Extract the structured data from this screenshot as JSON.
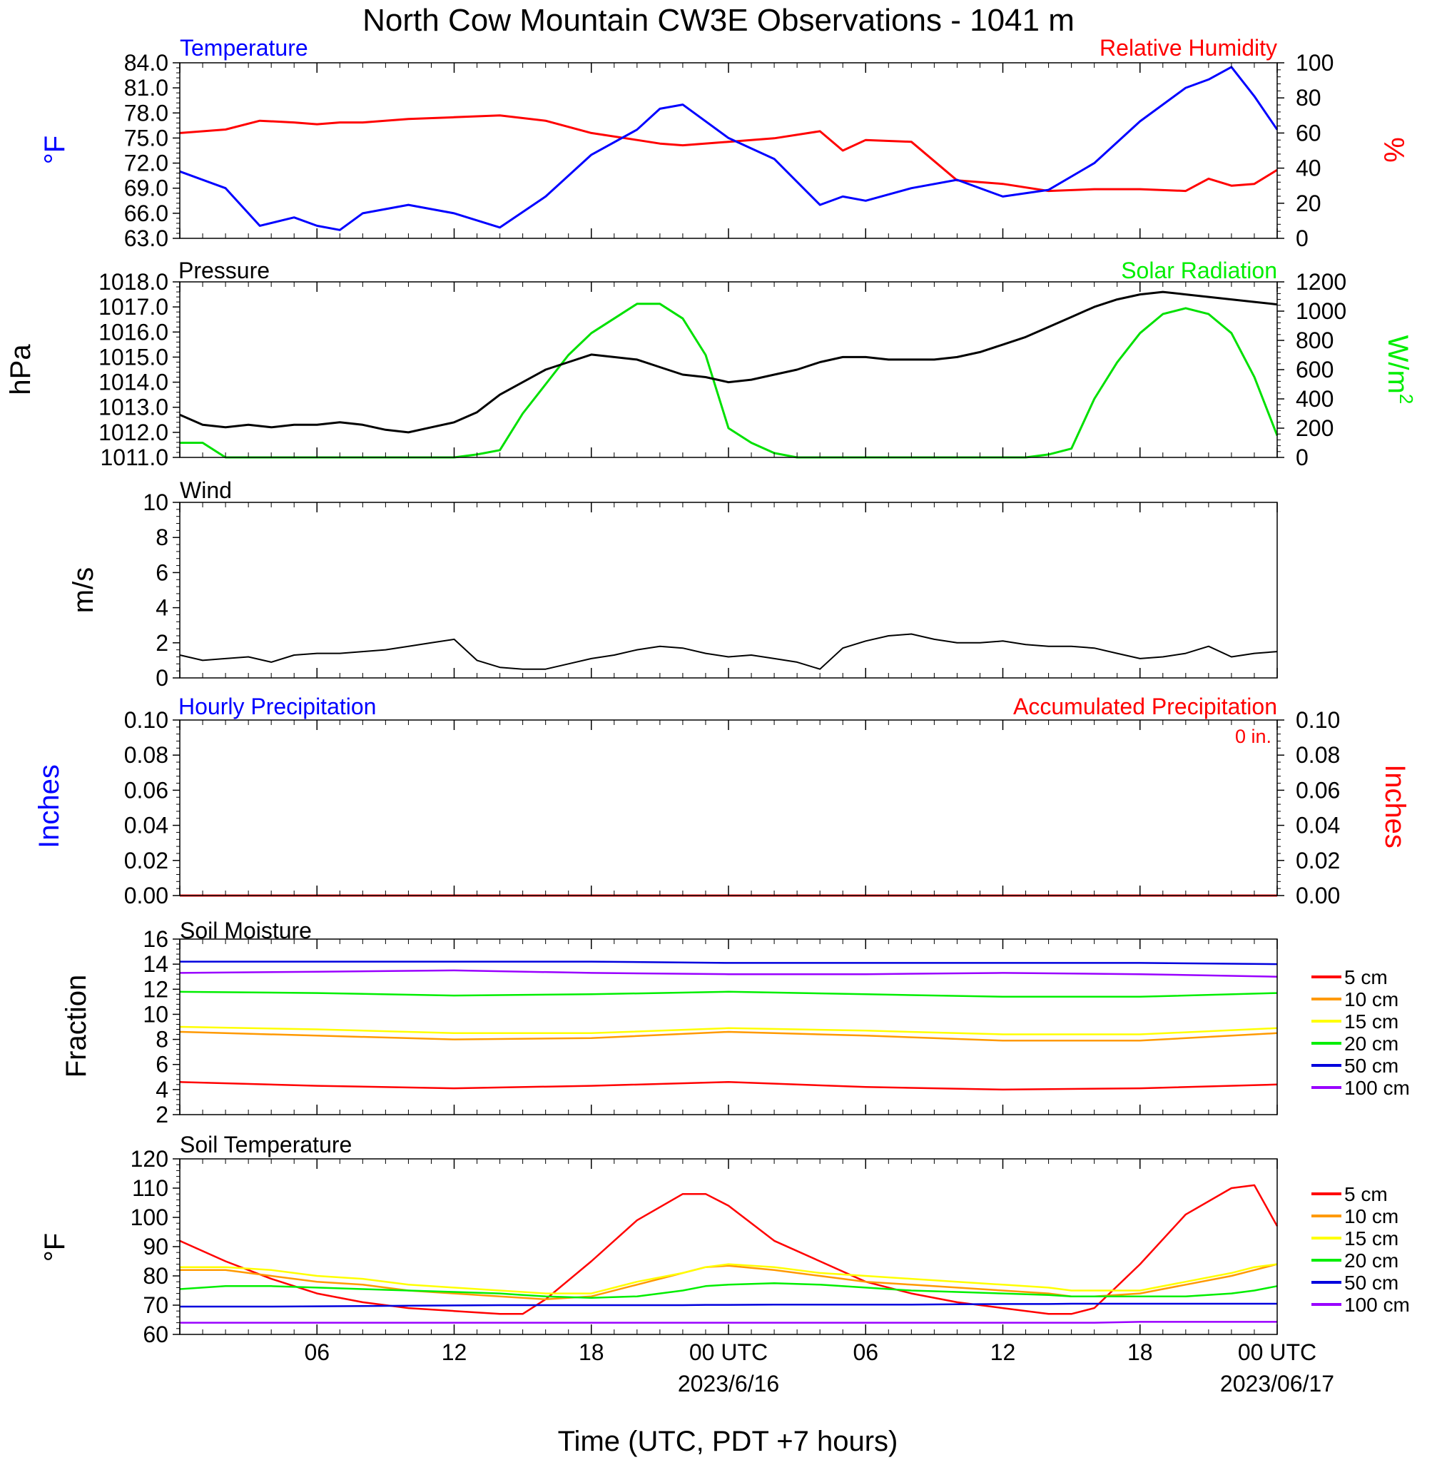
{
  "title": "North Cow Mountain CW3E Observations - 1041 m",
  "xlabel": "Time (UTC, PDT +7 hours)",
  "x_ticks": [
    {
      "hour": 6,
      "label": "06"
    },
    {
      "hour": 12,
      "label": "12"
    },
    {
      "hour": 18,
      "label": "18"
    },
    {
      "hour": 24,
      "label": "00 UTC",
      "date": "2023/6/16"
    },
    {
      "hour": 30,
      "label": "06"
    },
    {
      "hour": 36,
      "label": "12"
    },
    {
      "hour": 42,
      "label": "18"
    },
    {
      "hour": 48,
      "label": "00 UTC",
      "date": "2023/06/17"
    }
  ],
  "colors": {
    "temperature": "#0000ff",
    "humidity": "#ff0000",
    "pressure": "#000000",
    "solar": "#00e000",
    "wind": "#000000",
    "barbs": "#ff0000",
    "hourly_precip": "#0000ff",
    "accum_precip": "#ff0000",
    "cm5": "#ff0000",
    "cm10": "#ff9900",
    "cm15": "#ffff00",
    "cm20": "#00ee00",
    "cm50": "#0000dd",
    "cm100": "#9900ff"
  },
  "panels": {
    "temp_rh": {
      "left_title": "Temperature",
      "right_title": "Relative Humidity",
      "left_unit": "°F",
      "right_unit": "%",
      "left_ticks": [
        "84.0",
        "81.0",
        "78.0",
        "75.0",
        "72.0",
        "69.0",
        "66.0",
        "63.0"
      ],
      "right_ticks": [
        "100",
        "80",
        "60",
        "40",
        "20",
        "0"
      ]
    },
    "pressure": {
      "left_title": "Pressure",
      "right_title": "Solar Radiation",
      "left_unit": "hPa",
      "right_unit": "W/m",
      "right_unit_sup": "2",
      "left_ticks": [
        "1018.0",
        "1017.0",
        "1016.0",
        "1015.0",
        "1014.0",
        "1013.0",
        "1012.0",
        "1011.0"
      ],
      "right_ticks": [
        "1200",
        "1000",
        "800",
        "600",
        "400",
        "200",
        "0"
      ]
    },
    "wind": {
      "left_title": "Wind",
      "left_unit": "m/s",
      "left_ticks": [
        "10",
        "8",
        "6",
        "4",
        "2",
        "0"
      ]
    },
    "precip": {
      "left_title": "Hourly Precipitation",
      "right_title": "Accumulated Precipitation",
      "total": "0 in.",
      "left_unit": "Inches",
      "right_unit": "Inches",
      "left_ticks": [
        "0.10",
        "0.08",
        "0.06",
        "0.04",
        "0.02",
        "0.00"
      ],
      "right_ticks": [
        "0.10",
        "0.08",
        "0.06",
        "0.04",
        "0.02",
        "0.00"
      ]
    },
    "soil_moisture": {
      "left_title": "Soil Moisture",
      "left_unit": "Fraction",
      "left_ticks": [
        "16",
        "14",
        "12",
        "10",
        "8",
        "6",
        "4",
        "2"
      ],
      "legend": [
        "5 cm",
        "10 cm",
        "15 cm",
        "20 cm",
        "50 cm",
        "100 cm"
      ]
    },
    "soil_temp": {
      "left_title": "Soil Temperature",
      "left_unit": "°F",
      "left_ticks": [
        "120",
        "110",
        "100",
        "90",
        "80",
        "70",
        "60"
      ],
      "legend": [
        "5 cm",
        "10 cm",
        "15 cm",
        "20 cm",
        "50 cm",
        "100 cm"
      ]
    }
  },
  "chart_data": [
    {
      "type": "line",
      "title": "Temperature / Relative Humidity",
      "x_hours": [
        0,
        2,
        3.5,
        5,
        6,
        7,
        8,
        10,
        12,
        14,
        16,
        18,
        20,
        21,
        22,
        24,
        26,
        28,
        29,
        30,
        32,
        34,
        36,
        38,
        40,
        42,
        44,
        45,
        46,
        47,
        48
      ],
      "series": [
        {
          "name": "Temperature",
          "axis": "left",
          "ylim": [
            63,
            84
          ],
          "values": [
            71,
            69,
            64.5,
            65.5,
            64.5,
            64,
            66,
            67,
            66,
            64.3,
            68,
            73,
            76,
            78.5,
            79,
            75,
            72.5,
            67,
            68,
            67.5,
            69,
            70,
            68,
            68.8,
            72,
            77,
            81,
            82,
            83.5,
            80,
            76
          ]
        },
        {
          "name": "Relative Humidity",
          "axis": "right",
          "ylim": [
            0,
            100
          ],
          "values": [
            60,
            62,
            67,
            66,
            65,
            66,
            66,
            68,
            69,
            70,
            67,
            60,
            56,
            54,
            53,
            55,
            57,
            61,
            50,
            56,
            55,
            33,
            31,
            27,
            28,
            28,
            27,
            34,
            30,
            31,
            39
          ]
        }
      ]
    },
    {
      "type": "line",
      "title": "Pressure / Solar Radiation",
      "x_hours": [
        0,
        1,
        2,
        3,
        4,
        5,
        6,
        7,
        8,
        9,
        10,
        11,
        12,
        13,
        14,
        15,
        16,
        17,
        18,
        19,
        20,
        21,
        22,
        23,
        24,
        25,
        26,
        27,
        28,
        29,
        30,
        31,
        32,
        33,
        34,
        35,
        36,
        37,
        38,
        39,
        40,
        41,
        42,
        43,
        44,
        45,
        46,
        47,
        48
      ],
      "series": [
        {
          "name": "Pressure",
          "axis": "left",
          "ylim": [
            1011,
            1018
          ],
          "values": [
            1012.7,
            1012.3,
            1012.2,
            1012.3,
            1012.2,
            1012.3,
            1012.3,
            1012.4,
            1012.3,
            1012.1,
            1012.0,
            1012.2,
            1012.4,
            1012.8,
            1013.5,
            1014.0,
            1014.5,
            1014.8,
            1015.1,
            1015.0,
            1014.9,
            1014.6,
            1014.3,
            1014.2,
            1014.0,
            1014.1,
            1014.3,
            1014.5,
            1014.8,
            1015.0,
            1015.0,
            1014.9,
            1014.9,
            1014.9,
            1015.0,
            1015.2,
            1015.5,
            1015.8,
            1016.2,
            1016.6,
            1017.0,
            1017.3,
            1017.5,
            1017.6,
            1017.5,
            1017.4,
            1017.3,
            1017.2,
            1017.1
          ]
        },
        {
          "name": "Solar Radiation",
          "axis": "right",
          "ylim": [
            0,
            1200
          ],
          "values": [
            100,
            100,
            0,
            0,
            0,
            0,
            0,
            0,
            0,
            0,
            0,
            0,
            0,
            20,
            50,
            300,
            500,
            700,
            850,
            950,
            1050,
            1050,
            950,
            700,
            200,
            100,
            30,
            0,
            0,
            0,
            0,
            0,
            0,
            0,
            0,
            0,
            0,
            0,
            20,
            60,
            400,
            650,
            850,
            980,
            1020,
            980,
            850,
            550,
            150
          ]
        }
      ]
    },
    {
      "type": "line",
      "title": "Wind",
      "x_hours": [
        0,
        1,
        2,
        3,
        4,
        5,
        6,
        7,
        8,
        9,
        10,
        11,
        12,
        13,
        14,
        15,
        16,
        17,
        18,
        19,
        20,
        21,
        22,
        23,
        24,
        25,
        26,
        27,
        28,
        29,
        30,
        31,
        32,
        33,
        34,
        35,
        36,
        37,
        38,
        39,
        40,
        41,
        42,
        43,
        44,
        45,
        46,
        47,
        48
      ],
      "series": [
        {
          "name": "Wind speed",
          "axis": "left",
          "ylim": [
            0,
            10
          ],
          "values": [
            1.3,
            1.0,
            1.1,
            1.2,
            0.9,
            1.3,
            1.4,
            1.4,
            1.5,
            1.6,
            1.8,
            2.0,
            2.2,
            1.0,
            0.6,
            0.5,
            0.5,
            0.8,
            1.1,
            1.3,
            1.6,
            1.8,
            1.7,
            1.4,
            1.2,
            1.3,
            1.1,
            0.9,
            0.5,
            1.7,
            2.1,
            2.4,
            2.5,
            2.2,
            2.0,
            2.0,
            2.1,
            1.9,
            1.8,
            1.8,
            1.7,
            1.4,
            1.1,
            1.2,
            1.4,
            1.8,
            1.2,
            1.4,
            1.5
          ]
        }
      ]
    },
    {
      "type": "bar",
      "title": "Hourly Precipitation / Accumulated Precipitation",
      "x_hours": [
        0,
        48
      ],
      "series": [
        {
          "name": "Hourly Precipitation",
          "axis": "left",
          "ylim": [
            0,
            0.1
          ],
          "values": [
            0,
            0
          ]
        },
        {
          "name": "Accumulated Precipitation",
          "axis": "right",
          "ylim": [
            0,
            0.1
          ],
          "values": [
            0,
            0
          ]
        }
      ]
    },
    {
      "type": "line",
      "title": "Soil Moisture",
      "ylim": [
        2,
        16
      ],
      "x_hours": [
        0,
        6,
        12,
        18,
        24,
        30,
        36,
        42,
        48
      ],
      "series": [
        {
          "name": "5 cm",
          "values": [
            4.6,
            4.3,
            4.1,
            4.3,
            4.6,
            4.2,
            4.0,
            4.1,
            4.4
          ]
        },
        {
          "name": "10 cm",
          "values": [
            8.6,
            8.3,
            8.0,
            8.1,
            8.6,
            8.3,
            7.9,
            7.9,
            8.5
          ]
        },
        {
          "name": "15 cm",
          "values": [
            9.0,
            8.8,
            8.5,
            8.5,
            8.9,
            8.7,
            8.4,
            8.4,
            8.9
          ]
        },
        {
          "name": "20 cm",
          "values": [
            11.8,
            11.7,
            11.5,
            11.6,
            11.8,
            11.6,
            11.4,
            11.4,
            11.7
          ]
        },
        {
          "name": "50 cm",
          "values": [
            14.2,
            14.2,
            14.2,
            14.2,
            14.1,
            14.1,
            14.1,
            14.1,
            14.0
          ]
        },
        {
          "name": "100 cm",
          "values": [
            13.3,
            13.4,
            13.5,
            13.3,
            13.2,
            13.2,
            13.3,
            13.2,
            13.0
          ]
        }
      ]
    },
    {
      "type": "line",
      "title": "Soil Temperature",
      "ylim": [
        60,
        120
      ],
      "x_hours": [
        0,
        2,
        4,
        6,
        8,
        10,
        12,
        14,
        15,
        16,
        18,
        20,
        22,
        23,
        24,
        26,
        28,
        30,
        32,
        34,
        36,
        38,
        39,
        40,
        42,
        44,
        46,
        47,
        48
      ],
      "series": [
        {
          "name": "5 cm",
          "values": [
            92,
            85,
            79,
            74,
            71,
            69,
            68,
            67,
            67,
            72,
            85,
            99,
            108,
            108,
            104,
            92,
            85,
            78,
            74,
            71,
            69,
            67,
            67,
            69,
            84,
            101,
            110,
            111,
            97
          ]
        },
        {
          "name": "10 cm",
          "values": [
            82,
            82,
            80,
            78,
            77,
            75,
            74,
            73,
            72.5,
            72,
            73,
            77,
            81,
            83,
            83.5,
            82,
            80,
            78,
            77,
            76,
            75,
            74,
            73,
            73,
            74,
            77,
            80,
            82,
            84
          ]
        },
        {
          "name": "15 cm",
          "values": [
            83,
            83,
            82,
            80,
            79,
            77,
            76,
            75,
            74.5,
            74,
            74,
            78,
            81,
            83,
            84,
            83,
            81,
            80,
            79,
            78,
            77,
            76,
            75,
            75,
            75,
            78,
            81,
            83,
            84
          ]
        },
        {
          "name": "20 cm",
          "values": [
            75.5,
            76.5,
            76.5,
            76,
            75.5,
            75,
            74.5,
            74,
            73.5,
            73,
            72.5,
            73,
            75,
            76.5,
            77,
            77.5,
            77,
            76,
            75,
            74.5,
            74,
            73.5,
            73,
            73,
            73,
            73,
            74,
            75,
            76.5
          ]
        },
        {
          "name": "50 cm",
          "values": [
            69.5,
            69.5,
            69.5,
            69.6,
            69.7,
            69.8,
            69.9,
            70,
            70,
            70,
            70,
            70,
            70,
            70.1,
            70.1,
            70.2,
            70.2,
            70.2,
            70.2,
            70.3,
            70.4,
            70.4,
            70.5,
            70.5,
            70.5,
            70.5,
            70.5,
            70.5,
            70.5
          ]
        },
        {
          "name": "100 cm",
          "values": [
            64,
            64,
            64,
            64,
            64,
            64,
            64,
            64,
            64,
            64,
            64,
            64,
            64,
            64,
            64,
            64,
            64,
            64,
            64,
            64,
            64,
            64,
            64,
            64,
            64.3,
            64.3,
            64.3,
            64.3,
            64.3
          ]
        }
      ]
    }
  ]
}
